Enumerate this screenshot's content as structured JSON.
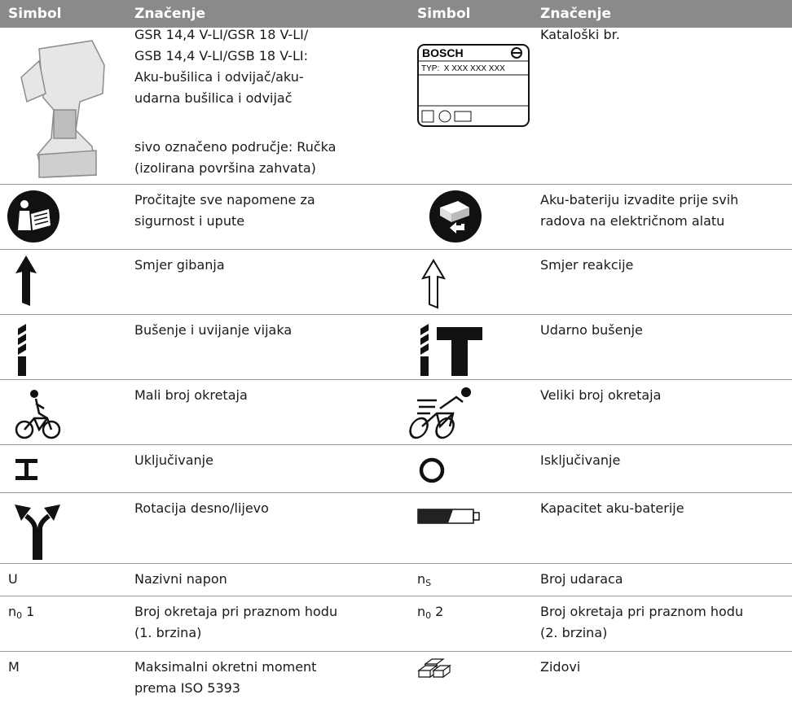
{
  "header": {
    "col1": "Simbol",
    "col2": "Značenje",
    "col3": "Simbol",
    "col4": "Značenje"
  },
  "rows": [
    {
      "left_meaning": [
        "GSR 14,4 V-LI/GSR 18 V-LI/",
        "GSB 14,4 V-LI/GSB 18 V-LI:",
        "Aku-bušilica i odvijač/aku-",
        "udarna bušilica i odvijač"
      ],
      "left_note": [
        "sivo označeno područje: Ručka",
        "(izolirana površina zahvata)"
      ],
      "right_label": {
        "brand": "BOSCH",
        "type": "TYP:  X XXX XXX XXX"
      },
      "right_meaning": [
        "Kataloški br."
      ]
    },
    {
      "left_meaning": [
        "Pročitajte sve napomene za",
        "sigurnost i upute"
      ],
      "right_meaning": [
        "Aku-bateriju izvadite prije svih",
        "radova na električnom alatu"
      ]
    },
    {
      "left_meaning": [
        "Smjer gibanja"
      ],
      "right_meaning": [
        "Smjer reakcije"
      ]
    },
    {
      "left_meaning": [
        "Bušenje i uvijanje vijaka"
      ],
      "right_meaning": [
        "Udarno bušenje"
      ]
    },
    {
      "left_meaning": [
        "Mali broj okretaja"
      ],
      "right_meaning": [
        "Veliki broj okretaja"
      ]
    },
    {
      "left_meaning": [
        "Uključivanje"
      ],
      "right_meaning": [
        "Isključivanje"
      ]
    },
    {
      "left_meaning": [
        "Rotacija desno/lijevo"
      ],
      "right_meaning": [
        "Kapacitet aku-baterije"
      ]
    },
    {
      "left_symbol": "U",
      "left_meaning": [
        "Nazivni napon"
      ],
      "right_symbol": {
        "base": "n",
        "sub": "S"
      },
      "right_meaning": [
        "Broj udaraca"
      ]
    },
    {
      "left_symbol": {
        "base": "n",
        "sub": "0",
        "suffix": "1"
      },
      "left_meaning": [
        "Broj okretaja pri praznom hodu",
        "(1. brzina)"
      ],
      "right_symbol": {
        "base": "n",
        "sub": "0",
        "suffix": "2"
      },
      "right_meaning": [
        "Broj okretaja pri praznom hodu",
        "(2. brzina)"
      ]
    },
    {
      "left_symbol": "M",
      "left_meaning": [
        "Maksimalni okretni moment",
        "prema ISO 5393"
      ],
      "right_meaning": [
        "Zidovi"
      ]
    }
  ]
}
